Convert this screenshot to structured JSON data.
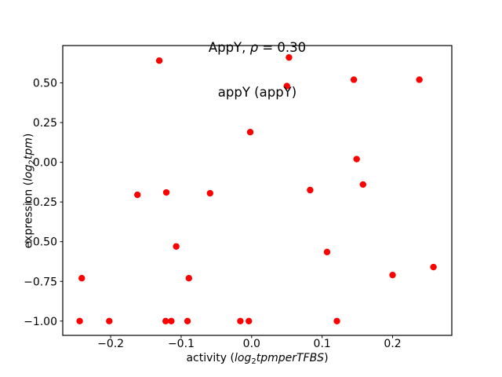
{
  "figure": {
    "title1": {
      "prefix": "AppY, ",
      "rho": "ρ",
      "suffix": " = 0.30"
    },
    "title2": "appY (appY)",
    "xlabel": {
      "prefix": "activity (",
      "log": "log",
      "sub": "2",
      "word": "tpmperTFBS",
      "suffix": ")"
    },
    "ylabel": {
      "prefix": "expression (",
      "log": "log",
      "sub": "2",
      "word": "tpm",
      "suffix": ")"
    }
  },
  "chart_data": {
    "type": "scatter",
    "title": "AppY, ρ = 0.30",
    "subtitle": "appY (appY)",
    "xlabel": "activity (log2tpmperTFBS)",
    "ylabel": "expression (log2tpm)",
    "grid": false,
    "legend": "none",
    "marker_color": "#ff0000",
    "marker_radius_px": 4.2,
    "axis_color": "#000000",
    "xlim": [
      -0.268,
      0.284
    ],
    "ylim": [
      -1.09,
      0.735
    ],
    "xticks": {
      "values": [
        -0.2,
        -0.1,
        0.0,
        0.1,
        0.2
      ],
      "labels": [
        "−0.2",
        "−0.1",
        "0.0",
        "0.1",
        "0.2"
      ]
    },
    "yticks": {
      "values": [
        0.5,
        0.25,
        0.0,
        -0.25,
        -0.5,
        -0.75,
        -1.0
      ],
      "labels": [
        "0.50",
        "0.25",
        "0.00",
        "−0.25",
        "−0.50",
        "−0.75",
        "−1.00"
      ]
    },
    "points": [
      [
        -0.131,
        0.64
      ],
      [
        0.053,
        0.66
      ],
      [
        0.05,
        0.48
      ],
      [
        0.145,
        0.52
      ],
      [
        0.238,
        0.52
      ],
      [
        -0.002,
        0.19
      ],
      [
        0.149,
        0.02
      ],
      [
        0.158,
        -0.14
      ],
      [
        0.083,
        -0.175
      ],
      [
        -0.162,
        -0.205
      ],
      [
        -0.121,
        -0.19
      ],
      [
        -0.059,
        -0.195
      ],
      [
        -0.107,
        -0.53
      ],
      [
        0.107,
        -0.565
      ],
      [
        -0.241,
        -0.73
      ],
      [
        -0.089,
        -0.73
      ],
      [
        0.2,
        -0.71
      ],
      [
        0.258,
        -0.66
      ],
      [
        -0.244,
        -1.0
      ],
      [
        -0.202,
        -1.0
      ],
      [
        -0.122,
        -1.0
      ],
      [
        -0.114,
        -1.0
      ],
      [
        -0.091,
        -1.0
      ],
      [
        -0.016,
        -1.0
      ],
      [
        -0.004,
        -1.0
      ],
      [
        0.121,
        -1.0
      ]
    ]
  }
}
